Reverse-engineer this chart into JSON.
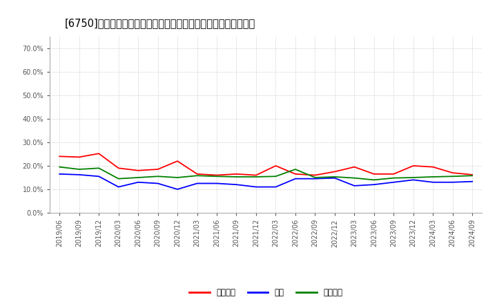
{
  "title": "[6750]　売上債権、在庫、買入債務の総資産に対する比率の推移",
  "x_labels": [
    "2019/06",
    "2019/09",
    "2019/12",
    "2020/03",
    "2020/06",
    "2020/09",
    "2020/12",
    "2021/03",
    "2021/06",
    "2021/09",
    "2021/12",
    "2022/03",
    "2022/06",
    "2022/09",
    "2022/12",
    "2023/03",
    "2023/06",
    "2023/09",
    "2023/12",
    "2024/03",
    "2024/06",
    "2024/09"
  ],
  "uriage_saiken": [
    0.24,
    0.237,
    0.252,
    0.19,
    0.18,
    0.185,
    0.22,
    0.165,
    0.16,
    0.165,
    0.16,
    0.2,
    0.165,
    0.16,
    0.175,
    0.195,
    0.165,
    0.165,
    0.2,
    0.195,
    0.17,
    0.162
  ],
  "zaiko": [
    0.165,
    0.162,
    0.155,
    0.11,
    0.13,
    0.125,
    0.1,
    0.125,
    0.125,
    0.12,
    0.11,
    0.11,
    0.145,
    0.145,
    0.148,
    0.115,
    0.12,
    0.13,
    0.14,
    0.13,
    0.13,
    0.133
  ],
  "kainyu_saimu": [
    0.195,
    0.185,
    0.19,
    0.145,
    0.15,
    0.155,
    0.15,
    0.158,
    0.155,
    0.153,
    0.153,
    0.155,
    0.185,
    0.15,
    0.153,
    0.148,
    0.14,
    0.148,
    0.15,
    0.153,
    0.155,
    0.158
  ],
  "uriage_color": "#ff0000",
  "zaiko_color": "#0000ff",
  "kainyu_color": "#008000",
  "uriage_label": "売上債権",
  "zaiko_label": "在庫",
  "kainyu_label": "買入債務",
  "ylim": [
    0.0,
    0.75
  ],
  "yticks": [
    0.0,
    0.1,
    0.2,
    0.3,
    0.4,
    0.5,
    0.6,
    0.7
  ],
  "ytick_labels": [
    "0.0%",
    "10.0%",
    "20.0%",
    "30.0%",
    "40.0%",
    "50.0%",
    "60.0%",
    "70.0%"
  ],
  "bg_color": "#ffffff",
  "plot_bg_color": "#ffffff",
  "grid_color": "#bbbbbb",
  "title_fontsize": 10.5,
  "tick_fontsize": 7,
  "legend_fontsize": 8.5
}
